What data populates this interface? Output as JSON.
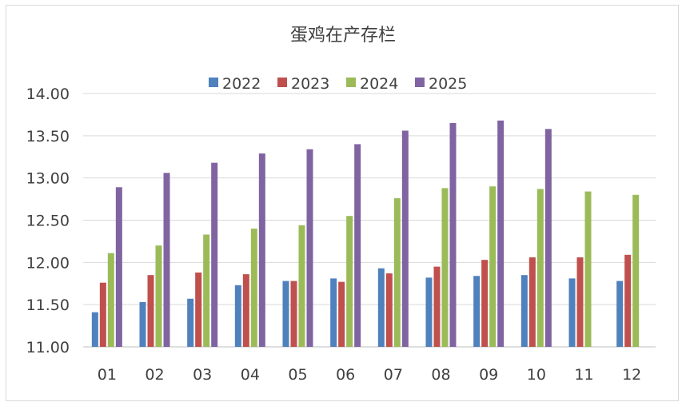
{
  "chart_data": {
    "type": "bar",
    "title": "蛋鸡在产存栏",
    "xlabel": "",
    "ylabel": "",
    "categories": [
      "01",
      "02",
      "03",
      "04",
      "05",
      "06",
      "07",
      "08",
      "09",
      "10",
      "11",
      "12"
    ],
    "y_tick_labels": [
      "11.00",
      "11.50",
      "12.00",
      "12.50",
      "13.00",
      "13.50",
      "14.00"
    ],
    "ylim": [
      11.0,
      14.0
    ],
    "grid": true,
    "legend_position": "top",
    "series": [
      {
        "name": "2022",
        "color": "#4f81bd",
        "values": [
          11.41,
          11.53,
          11.57,
          11.73,
          11.78,
          11.81,
          11.93,
          11.82,
          11.84,
          11.85,
          11.81,
          11.78
        ]
      },
      {
        "name": "2023",
        "color": "#c0504d",
        "values": [
          11.76,
          11.85,
          11.88,
          11.86,
          11.78,
          11.77,
          11.87,
          11.95,
          12.03,
          12.06,
          12.06,
          12.09
        ]
      },
      {
        "name": "2024",
        "color": "#9bbb59",
        "values": [
          12.11,
          12.2,
          12.33,
          12.4,
          12.44,
          12.55,
          12.76,
          12.88,
          12.9,
          12.87,
          12.84,
          12.8
        ]
      },
      {
        "name": "2025",
        "color": "#8064a2",
        "values": [
          12.89,
          13.06,
          13.18,
          13.29,
          13.34,
          13.4,
          13.56,
          13.65,
          13.68,
          13.58,
          null,
          null
        ]
      }
    ]
  }
}
